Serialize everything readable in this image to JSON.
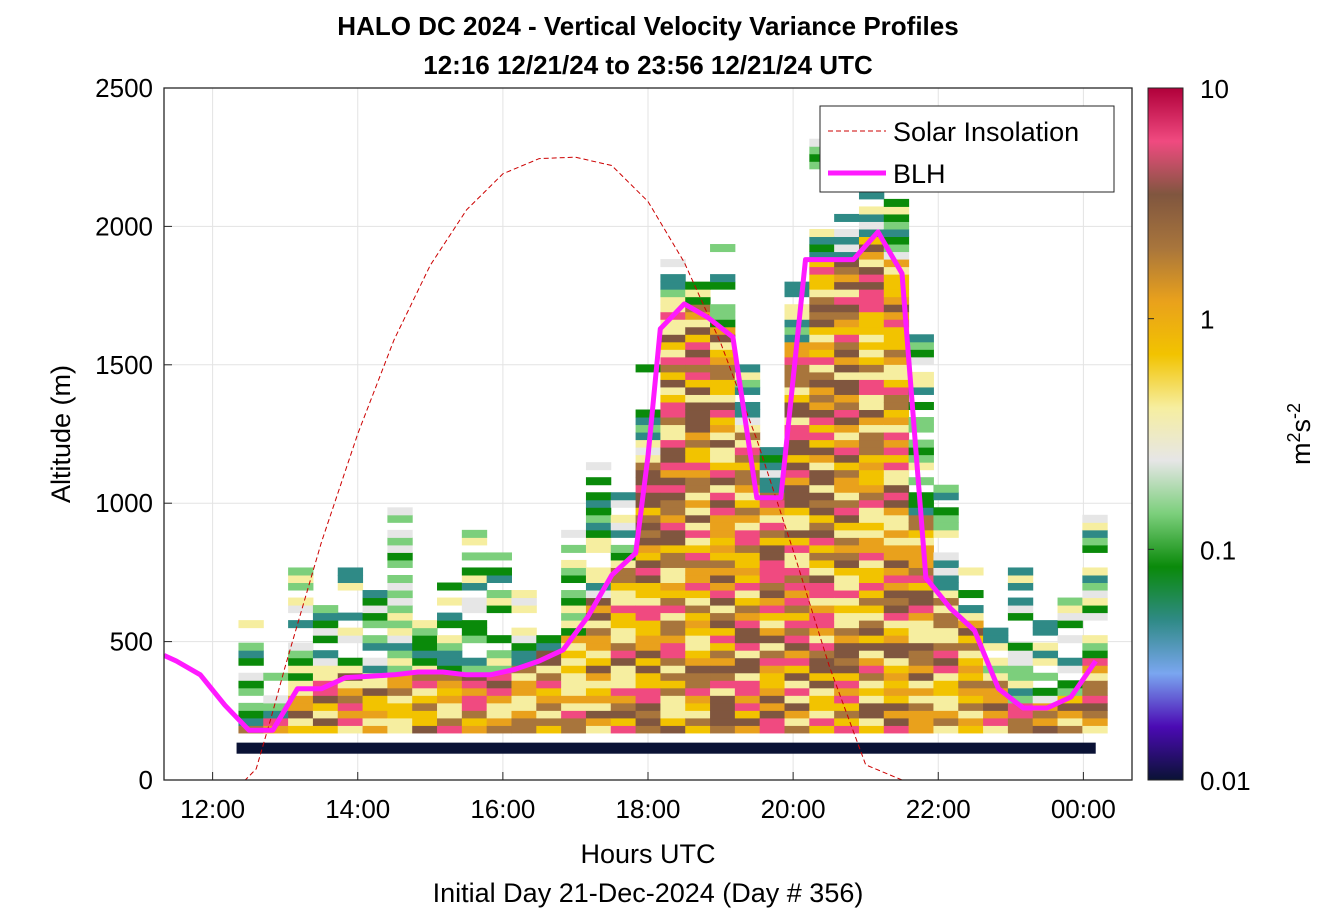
{
  "chart_data": {
    "type": "heatmap",
    "title": "HALO DC 2024 - Vertical Velocity Variance Profiles",
    "subtitle": "12:16 12/21/24 to 23:56 12/21/24  UTC",
    "xlabel": "Hours UTC",
    "ylabel": "Altitude (m)",
    "footer": "Initial Day 21-Dec-2024 (Day # 356)",
    "xlim": [
      11.33,
      24.67
    ],
    "ylim": [
      0,
      2500
    ],
    "x_ticks": [
      {
        "value": 12,
        "label": "12:00"
      },
      {
        "value": 14,
        "label": "14:00"
      },
      {
        "value": 16,
        "label": "16:00"
      },
      {
        "value": 18,
        "label": "18:00"
      },
      {
        "value": 20,
        "label": "20:00"
      },
      {
        "value": 22,
        "label": "22:00"
      },
      {
        "value": 24,
        "label": "00:00"
      }
    ],
    "y_ticks": [
      0,
      500,
      1000,
      1500,
      2000,
      2500
    ],
    "grid": true,
    "legend_position": "top-right",
    "colorbar": {
      "label": "m²s⁻²",
      "label_base": "m",
      "label_exp1": "2",
      "label_mid": "s",
      "label_exp2": "-2",
      "scale": "log",
      "range": [
        0.01,
        10
      ],
      "ticks": [
        "0.01",
        "0.1",
        "1",
        "10"
      ],
      "colors": [
        "#0a1235",
        "#4b0ab4",
        "#7aa6f0",
        "#2f8a86",
        "#0a8a0a",
        "#7ccf7c",
        "#e6e6e6",
        "#f6eea0",
        "#f2c300",
        "#e9a11c",
        "#a8753c",
        "#80563f",
        "#f04a80",
        "#b0003a"
      ]
    },
    "series": [
      {
        "name": "Solar Insolation",
        "style": "dashed",
        "color": "#cc0000",
        "x": [
          11.33,
          12.45,
          12.6,
          12.8,
          13.0,
          13.5,
          14.0,
          14.5,
          15.0,
          15.5,
          16.0,
          16.5,
          17.0,
          17.5,
          18.0,
          18.5,
          19.0,
          19.5,
          20.0,
          20.5,
          21.0,
          21.5,
          21.65,
          21.7,
          24.67
        ],
        "y": [
          0,
          0,
          40,
          220,
          410,
          860,
          1250,
          1590,
          1860,
          2060,
          2190,
          2245,
          2250,
          2220,
          2090,
          1870,
          1580,
          1230,
          830,
          410,
          55,
          0,
          0,
          0,
          0
        ]
      },
      {
        "name": "BLH",
        "style": "solid",
        "color": "#ff1aff",
        "x": [
          11.33,
          11.5,
          11.83,
          12.17,
          12.5,
          12.83,
          13.17,
          13.5,
          13.83,
          14.17,
          14.5,
          14.83,
          15.17,
          15.5,
          15.83,
          16.17,
          16.5,
          16.83,
          17.17,
          17.5,
          17.83,
          18.0,
          18.17,
          18.5,
          18.83,
          19.17,
          19.5,
          19.83,
          20.17,
          20.5,
          20.83,
          21.17,
          21.5,
          21.83,
          22.17,
          22.5,
          22.83,
          23.17,
          23.5,
          23.83,
          24.17
        ],
        "y": [
          450,
          430,
          380,
          270,
          180,
          180,
          330,
          330,
          370,
          375,
          380,
          390,
          390,
          380,
          380,
          400,
          430,
          470,
          590,
          740,
          820,
          1170,
          1630,
          1720,
          1670,
          1600,
          1020,
          1020,
          1880,
          1880,
          1880,
          1980,
          1830,
          730,
          620,
          540,
          330,
          260,
          260,
          300,
          430
        ]
      }
    ]
  }
}
